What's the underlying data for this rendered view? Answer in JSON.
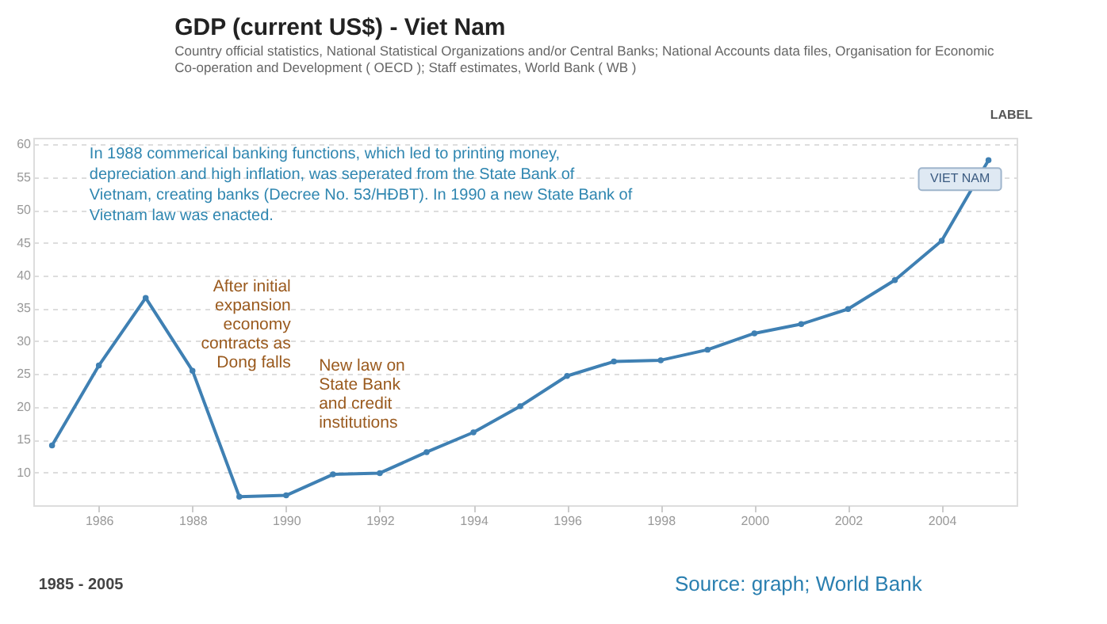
{
  "chart_data": {
    "type": "line",
    "title": "GDP (current US$) - Viet Nam",
    "subtitle": "Country official statistics, National Statistical Organizations and/or Central Banks; National Accounts data files, Organisation for Economic Co-operation and Development ( OECD ); Staff estimates, World Bank ( WB )",
    "x": [
      1985,
      1986,
      1987,
      1988,
      1989,
      1990,
      1991,
      1992,
      1993,
      1994,
      1995,
      1996,
      1997,
      1998,
      1999,
      2000,
      2001,
      2002,
      2003,
      2004,
      2005
    ],
    "series": [
      {
        "name": "VIET NAM",
        "color": "#3f80b3",
        "values": [
          14.1,
          26.3,
          36.6,
          25.5,
          6.3,
          6.5,
          9.7,
          9.9,
          13.1,
          16.1,
          20.1,
          24.7,
          26.9,
          27.1,
          28.7,
          31.2,
          32.6,
          34.9,
          39.3,
          45.3,
          57.6
        ]
      }
    ],
    "xlim": [
      1984.6,
      2005.6
    ],
    "xticks": [
      1986,
      1988,
      1990,
      1992,
      1994,
      1996,
      1998,
      2000,
      2002,
      2004
    ],
    "ylim": [
      5,
      61
    ],
    "yticks": [
      10,
      15,
      20,
      25,
      30,
      35,
      40,
      45,
      50,
      55,
      60
    ],
    "grid": "y",
    "legend": false,
    "marker": "circle",
    "line_style": "solid",
    "annotations": [
      "In 1988 commerical banking functions, which led to printing money, depreciation and high inflation, was seperated from the State Bank of Vietnam, creating banks (Decree No. 53/HĐBT). In 1990 a new State Bank of Vietnam law was enacted.",
      "After initial expansion economy contracts as Dong falls",
      "New law on State Bank and credit institutions",
      "LABEL",
      "1985 - 2005",
      "Source: graph; World Bank"
    ]
  }
}
